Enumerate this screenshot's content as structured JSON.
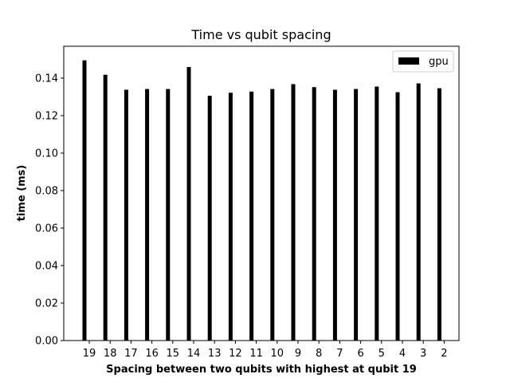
{
  "chart_data": {
    "type": "bar",
    "title": "Time vs qubit spacing",
    "xlabel": "Spacing between two qubits with highest at qubit 19",
    "ylabel": "time (ms)",
    "categories": [
      "19",
      "18",
      "17",
      "16",
      "15",
      "14",
      "13",
      "12",
      "11",
      "10",
      "9",
      "8",
      "7",
      "6",
      "5",
      "4",
      "3",
      "2"
    ],
    "series": [
      {
        "name": "gpu",
        "color": "#000000",
        "values": [
          0.1495,
          0.1418,
          0.1338,
          0.1342,
          0.1342,
          0.1459,
          0.1306,
          0.1322,
          0.1328,
          0.1342,
          0.1368,
          0.1352,
          0.1338,
          0.1342,
          0.1355,
          0.1325,
          0.1372,
          0.1346
        ]
      }
    ],
    "ylim": [
      0,
      0.157
    ],
    "yticks": [
      "0.00",
      "0.02",
      "0.04",
      "0.06",
      "0.08",
      "0.10",
      "0.12",
      "0.14"
    ],
    "legend_position": "top-right",
    "grid": false
  }
}
